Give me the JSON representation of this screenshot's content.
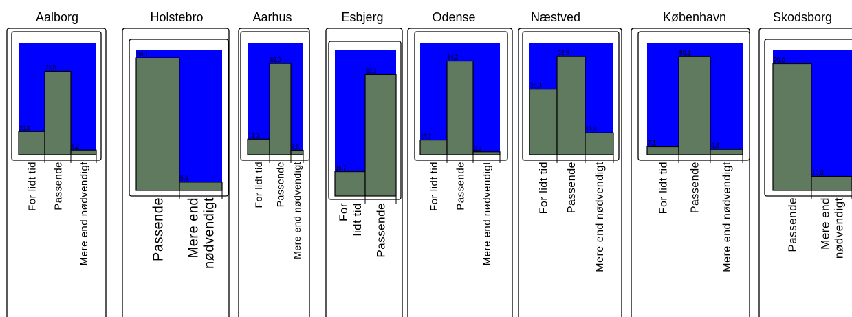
{
  "chart_data": [
    {
      "type": "bar",
      "title": "Aalborg",
      "categories": [
        "For lidt tid",
        "Passende",
        "Mere end nødvendigt"
      ],
      "values": [
        20.8,
        75.0,
        4.2
      ],
      "value_labels": [
        "20,8",
        "75,0",
        "4,2"
      ],
      "ylim": [
        0,
        100
      ]
    },
    {
      "type": "bar",
      "title": "Holstebro",
      "categories": [
        "Passende",
        "Mere end nødvendigt"
      ],
      "category_lines": [
        [
          "Passende"
        ],
        [
          "Mere end",
          "nødvendigt"
        ]
      ],
      "values": [
        94.1,
        5.9
      ],
      "value_labels": [
        "94,1",
        "5,9"
      ],
      "ylim": [
        0,
        100
      ]
    },
    {
      "type": "bar",
      "title": "Aarhus",
      "categories": [
        "For lidt tid",
        "Passende",
        "Mere end nødvendigt"
      ],
      "values": [
        14.0,
        82.0,
        4.0
      ],
      "value_labels": [
        "14,0",
        "82,0",
        "4,0"
      ],
      "ylim": [
        0,
        100
      ]
    },
    {
      "type": "bar",
      "title": "Esbjerg",
      "categories": [
        "For lidt tid",
        "Passende"
      ],
      "category_lines": [
        [
          "For",
          "lidt tid"
        ],
        [
          "Passende"
        ]
      ],
      "values": [
        16.7,
        83.3
      ],
      "value_labels": [
        "16,7",
        "83,3"
      ],
      "ylim": [
        0,
        100
      ]
    },
    {
      "type": "bar",
      "title": "Odense",
      "categories": [
        "For lidt tid",
        "Passende",
        "Mere end nødvendigt"
      ],
      "values": [
        13.2,
        84.2,
        2.6
      ],
      "value_labels": [
        "13,2",
        "84,2",
        "2,6"
      ],
      "ylim": [
        0,
        100
      ]
    },
    {
      "type": "bar",
      "title": "Næstved",
      "categories": [
        "For lidt tid",
        "Passende",
        "Mere end nødvendigt"
      ],
      "values": [
        35.3,
        52.9,
        11.8
      ],
      "value_labels": [
        "35,3",
        "52,9",
        "11,8"
      ],
      "ylim": [
        0,
        60
      ]
    },
    {
      "type": "bar",
      "title": "København",
      "categories": [
        "For lidt tid",
        "Passende",
        "Mere end nødvendigt"
      ],
      "values": [
        7.1,
        88.1,
        4.8
      ],
      "value_labels": [
        "7,1",
        "88,1",
        "4,8"
      ],
      "ylim": [
        0,
        100
      ]
    },
    {
      "type": "bar",
      "title": "Skodsborg",
      "categories": [
        "Passende",
        "Mere end nødvendigt"
      ],
      "category_lines": [
        [
          "Passende"
        ],
        [
          "Mere end",
          "nødvendigt"
        ]
      ],
      "values": [
        90.0,
        10.0
      ],
      "value_labels": [
        "90,0",
        "10,0"
      ],
      "ylim": [
        0,
        100
      ]
    }
  ],
  "colors": {
    "plot_background": "#0000ff",
    "bar_fill": "#5f7a5f",
    "frame": "#000000"
  }
}
